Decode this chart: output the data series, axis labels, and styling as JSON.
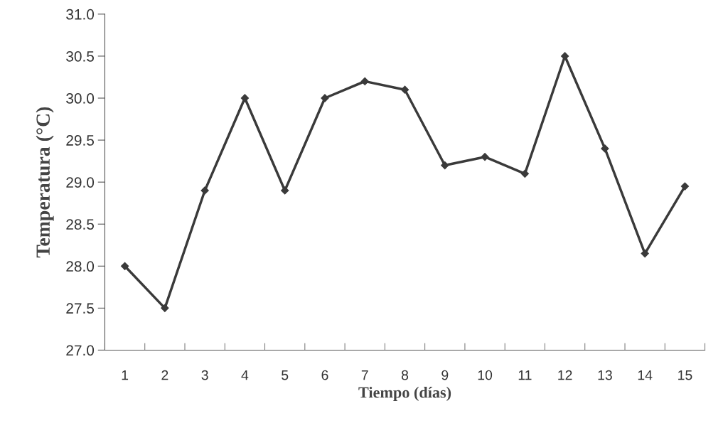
{
  "chart_data": {
    "type": "line",
    "xlabel": "Tiempo (días)",
    "ylabel": "Temperatura (°C)",
    "categories": [
      "1",
      "2",
      "3",
      "4",
      "5",
      "6",
      "7",
      "8",
      "9",
      "10",
      "11",
      "12",
      "13",
      "14",
      "15"
    ],
    "values": [
      28.0,
      27.5,
      28.9,
      30.0,
      28.9,
      30.0,
      30.2,
      30.1,
      29.2,
      29.3,
      29.1,
      30.5,
      29.4,
      28.15,
      28.95
    ],
    "color": "#3a3a3a",
    "marker": "diamond",
    "line_style": "solid",
    "ylim": [
      27.0,
      31.0
    ],
    "yticks": [
      {
        "value": 27.0,
        "label": "27.0"
      },
      {
        "value": 27.5,
        "label": "27.5"
      },
      {
        "value": 28.0,
        "label": "28.0"
      },
      {
        "value": 28.5,
        "label": "28.5"
      },
      {
        "value": 29.0,
        "label": "29.0"
      },
      {
        "value": 29.5,
        "label": "29.5"
      },
      {
        "value": 30.0,
        "label": "30.0"
      },
      {
        "value": 30.5,
        "label": "30.5"
      },
      {
        "value": 31.0,
        "label": "31.0"
      }
    ],
    "grid": false,
    "legend": false
  }
}
